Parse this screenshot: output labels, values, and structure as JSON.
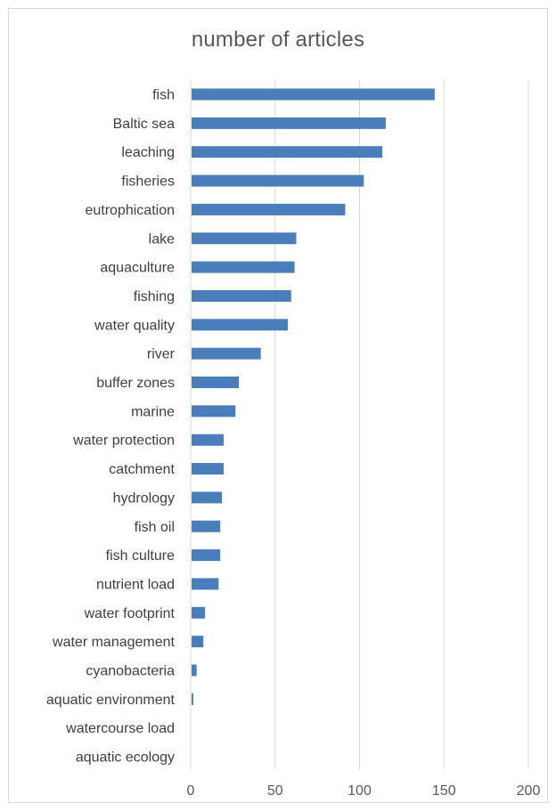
{
  "chart_data": {
    "type": "bar",
    "orientation": "horizontal",
    "title": "number of articles",
    "xlabel": "",
    "ylabel": "",
    "xlim": [
      0,
      200
    ],
    "x_ticks": [
      0,
      50,
      100,
      150,
      200
    ],
    "grid": "vertical",
    "legend": "none",
    "bar_color": "#4a7ebb",
    "categories": [
      "fish",
      "Baltic sea",
      "leaching",
      "fisheries",
      "eutrophication",
      "lake",
      "aquaculture",
      "fishing",
      "water quality",
      "river",
      "buffer zones",
      "marine",
      "water protection",
      "catchment",
      "hydrology",
      "fish oil",
      "fish culture",
      "nutrient load",
      "water footprint",
      "water management",
      "cyanobacteria",
      "aquatic environment",
      "watercourse load",
      "aquatic ecology"
    ],
    "values": [
      144,
      115,
      113,
      102,
      91,
      62,
      61,
      59,
      57,
      41,
      28,
      26,
      19,
      19,
      18,
      17,
      17,
      16,
      8,
      7,
      3,
      1,
      0,
      0
    ]
  }
}
